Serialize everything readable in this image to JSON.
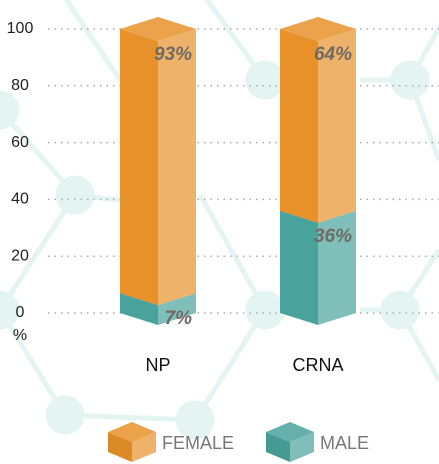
{
  "chart_data": {
    "type": "bar3d_stacked",
    "categories": [
      "NP",
      "CRNA"
    ],
    "series": [
      {
        "name": "FEMALE",
        "color": "#e8912a",
        "values": [
          93,
          64
        ],
        "value_labels": [
          "93%",
          "64%"
        ]
      },
      {
        "name": "MALE",
        "color": "#4aa29c",
        "values": [
          7,
          36
        ],
        "value_labels": [
          "7%",
          "36%"
        ]
      }
    ],
    "ylim": [
      0,
      100
    ],
    "yticks": [
      0,
      20,
      40,
      60,
      80,
      100
    ],
    "y_label": "%",
    "grid": true
  }
}
